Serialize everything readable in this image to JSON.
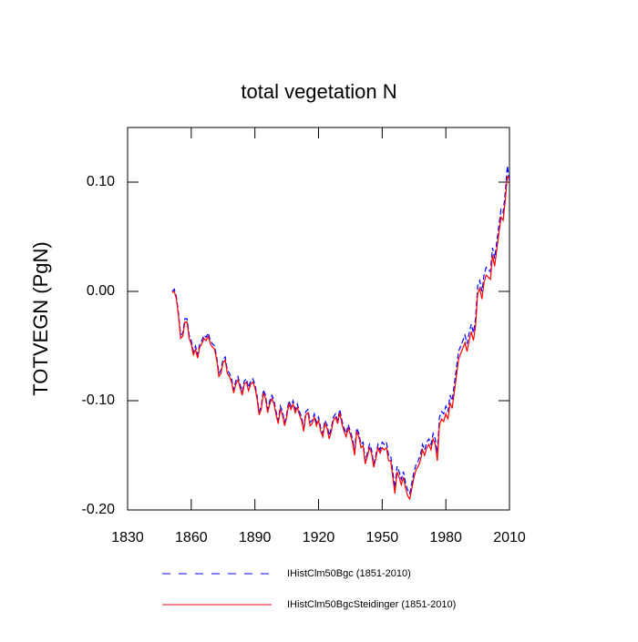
{
  "chart_data": {
    "type": "line",
    "title": "total vegetation N",
    "y_label": "TOTVEGN  (PgN)",
    "x": [
      1851,
      1852,
      1853,
      1854,
      1855,
      1856,
      1857,
      1858,
      1859,
      1860,
      1861,
      1862,
      1863,
      1864,
      1865,
      1866,
      1867,
      1868,
      1869,
      1870,
      1871,
      1872,
      1873,
      1874,
      1875,
      1876,
      1877,
      1878,
      1879,
      1880,
      1881,
      1882,
      1883,
      1884,
      1885,
      1886,
      1887,
      1888,
      1889,
      1890,
      1891,
      1892,
      1893,
      1894,
      1895,
      1896,
      1897,
      1898,
      1899,
      1900,
      1901,
      1902,
      1903,
      1904,
      1905,
      1906,
      1907,
      1908,
      1909,
      1910,
      1911,
      1912,
      1913,
      1914,
      1915,
      1916,
      1917,
      1918,
      1919,
      1920,
      1921,
      1922,
      1923,
      1924,
      1925,
      1926,
      1927,
      1928,
      1929,
      1930,
      1931,
      1932,
      1933,
      1934,
      1935,
      1936,
      1937,
      1938,
      1939,
      1940,
      1941,
      1942,
      1943,
      1944,
      1945,
      1946,
      1947,
      1948,
      1949,
      1950,
      1951,
      1952,
      1953,
      1954,
      1955,
      1956,
      1957,
      1958,
      1959,
      1960,
      1961,
      1962,
      1963,
      1964,
      1965,
      1966,
      1967,
      1968,
      1969,
      1970,
      1971,
      1972,
      1973,
      1974,
      1975,
      1976,
      1977,
      1978,
      1979,
      1980,
      1981,
      1982,
      1983,
      1984,
      1985,
      1986,
      1987,
      1988,
      1989,
      1990,
      1991,
      1992,
      1993,
      1994,
      1995,
      1996,
      1997,
      1998,
      1999,
      2000,
      2001,
      2002,
      2003,
      2004,
      2005,
      2006,
      2007,
      2008,
      2009,
      2010
    ],
    "series": [
      {
        "name": "IHistClm50Bgc (1851-2010)",
        "color": "#0000ff",
        "dash": true,
        "values": [
          0.0,
          0.002,
          -0.005,
          -0.02,
          -0.04,
          -0.038,
          -0.025,
          -0.025,
          -0.04,
          -0.045,
          -0.055,
          -0.05,
          -0.058,
          -0.048,
          -0.045,
          -0.04,
          -0.042,
          -0.038,
          -0.045,
          -0.048,
          -0.05,
          -0.06,
          -0.075,
          -0.072,
          -0.062,
          -0.06,
          -0.072,
          -0.075,
          -0.08,
          -0.09,
          -0.082,
          -0.078,
          -0.085,
          -0.092,
          -0.082,
          -0.08,
          -0.088,
          -0.082,
          -0.08,
          -0.085,
          -0.095,
          -0.11,
          -0.105,
          -0.09,
          -0.095,
          -0.108,
          -0.1,
          -0.095,
          -0.1,
          -0.11,
          -0.118,
          -0.105,
          -0.11,
          -0.12,
          -0.112,
          -0.1,
          -0.105,
          -0.1,
          -0.108,
          -0.103,
          -0.11,
          -0.115,
          -0.125,
          -0.11,
          -0.108,
          -0.12,
          -0.118,
          -0.112,
          -0.12,
          -0.115,
          -0.125,
          -0.13,
          -0.118,
          -0.122,
          -0.132,
          -0.125,
          -0.115,
          -0.112,
          -0.118,
          -0.108,
          -0.118,
          -0.125,
          -0.13,
          -0.122,
          -0.128,
          -0.135,
          -0.145,
          -0.125,
          -0.13,
          -0.14,
          -0.138,
          -0.155,
          -0.148,
          -0.14,
          -0.145,
          -0.158,
          -0.15,
          -0.14,
          -0.145,
          -0.138,
          -0.14,
          -0.138,
          -0.15,
          -0.15,
          -0.165,
          -0.18,
          -0.16,
          -0.165,
          -0.172,
          -0.165,
          -0.175,
          -0.182,
          -0.185,
          -0.175,
          -0.165,
          -0.158,
          -0.155,
          -0.15,
          -0.14,
          -0.145,
          -0.138,
          -0.135,
          -0.14,
          -0.13,
          -0.135,
          -0.148,
          -0.115,
          -0.11,
          -0.112,
          -0.105,
          -0.11,
          -0.095,
          -0.1,
          -0.085,
          -0.07,
          -0.055,
          -0.05,
          -0.045,
          -0.04,
          -0.048,
          -0.038,
          -0.03,
          -0.038,
          -0.025,
          0.005,
          0.01,
          0.0,
          0.015,
          0.022,
          0.02,
          0.018,
          0.04,
          0.03,
          0.045,
          0.06,
          0.075,
          0.072,
          0.09,
          0.115,
          0.1
        ]
      },
      {
        "name": "IHistClm50BgcSteidinger (1851-2010)",
        "color": "#ff0000",
        "dash": false,
        "values": [
          -0.001,
          0.0,
          -0.007,
          -0.023,
          -0.043,
          -0.041,
          -0.028,
          -0.028,
          -0.043,
          -0.048,
          -0.058,
          -0.053,
          -0.061,
          -0.051,
          -0.048,
          -0.043,
          -0.045,
          -0.041,
          -0.048,
          -0.051,
          -0.053,
          -0.063,
          -0.078,
          -0.075,
          -0.065,
          -0.063,
          -0.075,
          -0.078,
          -0.083,
          -0.093,
          -0.085,
          -0.081,
          -0.088,
          -0.095,
          -0.085,
          -0.083,
          -0.091,
          -0.085,
          -0.083,
          -0.088,
          -0.098,
          -0.113,
          -0.108,
          -0.093,
          -0.098,
          -0.111,
          -0.103,
          -0.098,
          -0.103,
          -0.113,
          -0.121,
          -0.108,
          -0.113,
          -0.123,
          -0.115,
          -0.103,
          -0.108,
          -0.103,
          -0.111,
          -0.106,
          -0.113,
          -0.118,
          -0.128,
          -0.113,
          -0.111,
          -0.123,
          -0.121,
          -0.115,
          -0.123,
          -0.118,
          -0.128,
          -0.133,
          -0.121,
          -0.125,
          -0.135,
          -0.128,
          -0.118,
          -0.115,
          -0.121,
          -0.111,
          -0.121,
          -0.128,
          -0.133,
          -0.125,
          -0.131,
          -0.138,
          -0.15,
          -0.128,
          -0.133,
          -0.143,
          -0.141,
          -0.158,
          -0.151,
          -0.143,
          -0.148,
          -0.161,
          -0.153,
          -0.143,
          -0.148,
          -0.143,
          -0.145,
          -0.143,
          -0.155,
          -0.155,
          -0.17,
          -0.185,
          -0.165,
          -0.17,
          -0.177,
          -0.17,
          -0.18,
          -0.187,
          -0.19,
          -0.18,
          -0.17,
          -0.163,
          -0.16,
          -0.155,
          -0.145,
          -0.15,
          -0.143,
          -0.14,
          -0.145,
          -0.135,
          -0.14,
          -0.155,
          -0.122,
          -0.117,
          -0.119,
          -0.112,
          -0.117,
          -0.102,
          -0.107,
          -0.092,
          -0.077,
          -0.062,
          -0.057,
          -0.052,
          -0.047,
          -0.055,
          -0.045,
          -0.037,
          -0.045,
          -0.032,
          -0.002,
          0.003,
          -0.007,
          0.008,
          0.015,
          0.013,
          0.011,
          0.033,
          0.023,
          0.038,
          0.053,
          0.068,
          0.065,
          0.083,
          0.105,
          0.103
        ]
      }
    ],
    "xlim": [
      1830,
      2010
    ],
    "xticks": [
      1830,
      1860,
      1890,
      1920,
      1950,
      1980,
      2010
    ],
    "ylim": [
      -0.2,
      0.15
    ],
    "yticks": [
      {
        "value": -0.2,
        "label": "-0.20"
      },
      {
        "value": -0.1,
        "label": "-0.10"
      },
      {
        "value": 0,
        "label": "0.00"
      },
      {
        "value": 0.1,
        "label": "0.10"
      }
    ]
  }
}
